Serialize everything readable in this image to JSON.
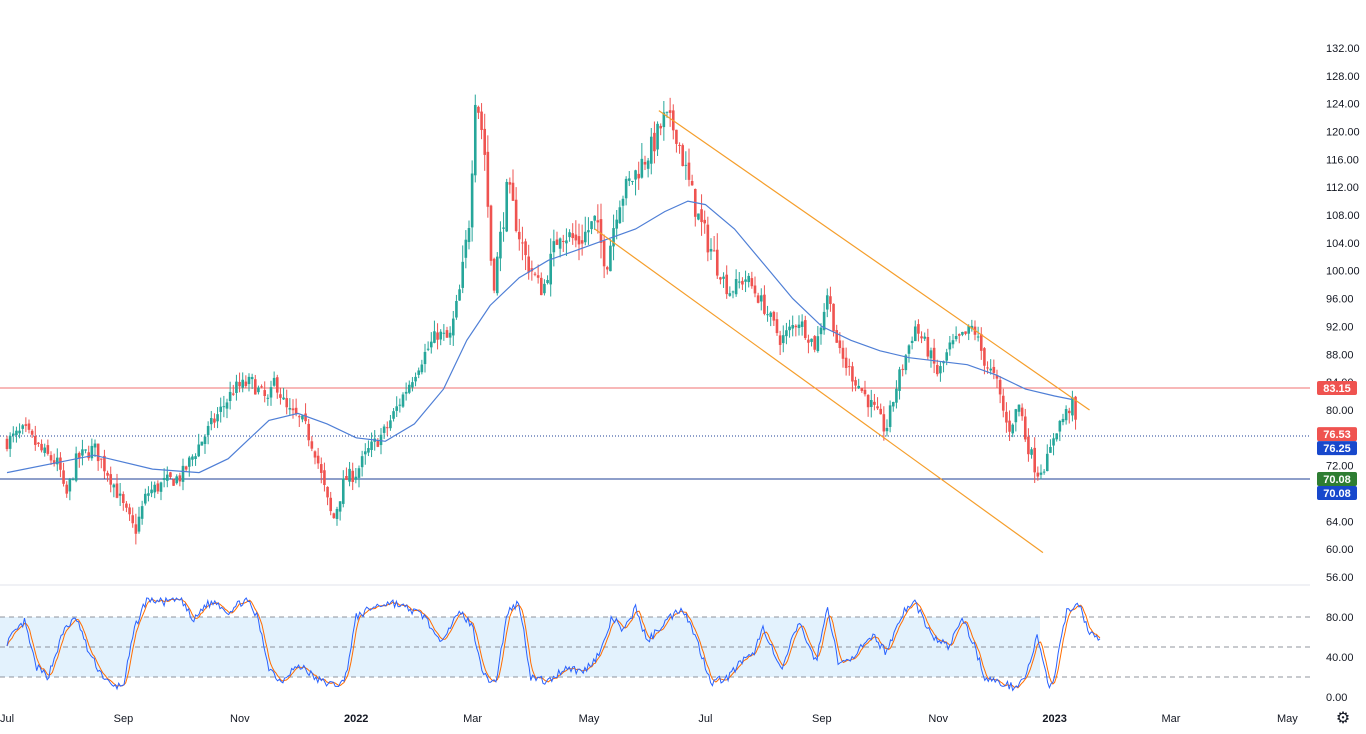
{
  "colors": {
    "up": "#26a69a",
    "down": "#ef5350",
    "ma": "#4f7fd6",
    "channel": "#f59e2b",
    "resistance_line": "#f07070",
    "support_line": "#1c3f94",
    "current_line": "#1c3f94",
    "stoch_k": "#2962ff",
    "stoch_d": "#ff6d00",
    "stoch_band": "#e3f2fd",
    "badge_red": "#ef5350",
    "badge_blue": "#1848cc",
    "badge_green": "#2e7d32"
  },
  "chart_data": {
    "type": "candlestick",
    "price_axis": {
      "ylim": [
        54,
        133
      ],
      "ticks": [
        "132.00",
        "128.00",
        "124.00",
        "120.00",
        "116.00",
        "112.00",
        "108.00",
        "104.00",
        "100.00",
        "96.00",
        "92.00",
        "88.00",
        "84.00",
        "80.00",
        "72.00",
        "64.00",
        "60.00",
        "56.00"
      ],
      "tick_values": [
        132,
        128,
        124,
        120,
        116,
        112,
        108,
        104,
        100,
        96,
        92,
        88,
        84,
        80,
        72,
        64,
        60,
        56
      ]
    },
    "time_axis": {
      "labels": [
        "Jul",
        "Sep",
        "Nov",
        "2022",
        "Mar",
        "May",
        "Jul",
        "Sep",
        "Nov",
        "2023",
        "Mar",
        "May"
      ],
      "bold": [
        false,
        false,
        false,
        true,
        false,
        false,
        false,
        false,
        false,
        true,
        false,
        false
      ],
      "months_offset": [
        0,
        2,
        4,
        6,
        8,
        10,
        12,
        14,
        16,
        18,
        20,
        22
      ]
    },
    "ohlc_anchors_close": [
      [
        0,
        75.5
      ],
      [
        0.3,
        77
      ],
      [
        0.6,
        74
      ],
      [
        0.9,
        72
      ],
      [
        1.0,
        67
      ],
      [
        1.2,
        73
      ],
      [
        1.5,
        74.5
      ],
      [
        1.8,
        70
      ],
      [
        2.0,
        66
      ],
      [
        2.2,
        62.5
      ],
      [
        2.4,
        68
      ],
      [
        2.7,
        69.5
      ],
      [
        3.0,
        70.5
      ],
      [
        3.3,
        75
      ],
      [
        3.6,
        79
      ],
      [
        3.9,
        83
      ],
      [
        4.2,
        84
      ],
      [
        4.5,
        81
      ],
      [
        4.6,
        84.5
      ],
      [
        4.8,
        80
      ],
      [
        5.1,
        78
      ],
      [
        5.3,
        74
      ],
      [
        5.5,
        67
      ],
      [
        5.6,
        64
      ],
      [
        5.8,
        70
      ],
      [
        6.0,
        71
      ],
      [
        6.2,
        74
      ],
      [
        6.5,
        77
      ],
      [
        6.8,
        82
      ],
      [
        7.1,
        87
      ],
      [
        7.4,
        91
      ],
      [
        7.6,
        90
      ],
      [
        7.8,
        98
      ],
      [
        7.95,
        108
      ],
      [
        8.05,
        126
      ],
      [
        8.2,
        118
      ],
      [
        8.35,
        97
      ],
      [
        8.6,
        112
      ],
      [
        8.9,
        102
      ],
      [
        9.2,
        97
      ],
      [
        9.5,
        106
      ],
      [
        9.8,
        104
      ],
      [
        10.1,
        107
      ],
      [
        10.3,
        101
      ],
      [
        10.5,
        110
      ],
      [
        10.8,
        114
      ],
      [
        11.1,
        118
      ],
      [
        11.3,
        122
      ],
      [
        11.5,
        120
      ],
      [
        11.7,
        113
      ],
      [
        11.9,
        107
      ],
      [
        12.1,
        103
      ],
      [
        12.4,
        97
      ],
      [
        12.7,
        99
      ],
      [
        13.0,
        95
      ],
      [
        13.3,
        90
      ],
      [
        13.6,
        93
      ],
      [
        13.9,
        89
      ],
      [
        14.1,
        97
      ],
      [
        14.3,
        88
      ],
      [
        14.6,
        84
      ],
      [
        14.9,
        80
      ],
      [
        15.1,
        77
      ],
      [
        15.3,
        84
      ],
      [
        15.6,
        92
      ],
      [
        15.8,
        89
      ],
      [
        16.0,
        85
      ],
      [
        16.2,
        89
      ],
      [
        16.5,
        91
      ],
      [
        16.6,
        92
      ],
      [
        16.8,
        87
      ],
      [
        17.0,
        84
      ],
      [
        17.2,
        77
      ],
      [
        17.4,
        81
      ],
      [
        17.5,
        76
      ],
      [
        17.7,
        71
      ],
      [
        17.9,
        73
      ],
      [
        18.0,
        77
      ],
      [
        18.2,
        79.5
      ],
      [
        18.3,
        81
      ],
      [
        18.4,
        76.5
      ]
    ],
    "moving_average": {
      "name": "",
      "points": [
        [
          0,
          71
        ],
        [
          1.5,
          73.5
        ],
        [
          2.5,
          71.5
        ],
        [
          3.3,
          71
        ],
        [
          3.8,
          73
        ],
        [
          4.5,
          78.5
        ],
        [
          5.0,
          79.5
        ],
        [
          5.5,
          78
        ],
        [
          6.0,
          76
        ],
        [
          6.5,
          75.5
        ],
        [
          7.0,
          78
        ],
        [
          7.5,
          83
        ],
        [
          7.9,
          90
        ],
        [
          8.3,
          95
        ],
        [
          8.8,
          99
        ],
        [
          9.3,
          101.5
        ],
        [
          9.8,
          103
        ],
        [
          10.3,
          104.5
        ],
        [
          10.8,
          106
        ],
        [
          11.3,
          108.5
        ],
        [
          11.7,
          110
        ],
        [
          12.0,
          109.5
        ],
        [
          12.5,
          106
        ],
        [
          13.0,
          101
        ],
        [
          13.5,
          96
        ],
        [
          14.0,
          92
        ],
        [
          14.5,
          90
        ],
        [
          15.0,
          88.5
        ],
        [
          15.5,
          87.5
        ],
        [
          16.0,
          87
        ],
        [
          16.5,
          86.5
        ],
        [
          17.0,
          85
        ],
        [
          17.5,
          83
        ],
        [
          18.0,
          82
        ],
        [
          18.3,
          81.5
        ]
      ]
    },
    "channel": {
      "upper": [
        [
          11.2,
          123
        ],
        [
          18.6,
          80
        ]
      ],
      "lower": [
        [
          10.1,
          106
        ],
        [
          17.8,
          59.5
        ]
      ]
    },
    "horizontal_lines": {
      "resistance": 83.15,
      "current": 76.25,
      "support": 70.08
    },
    "price_badges": [
      {
        "label": "83.15",
        "value": 83.15,
        "color": "badge_red"
      },
      {
        "label": "76.53",
        "value": 76.53,
        "color": "badge_red"
      },
      {
        "label": "76.25",
        "value": 76.25,
        "color": "badge_blue"
      },
      {
        "label": "70.08",
        "value": 70.08,
        "color": "badge_green"
      },
      {
        "label": "70.08",
        "value": 70.08,
        "color": "badge_blue"
      }
    ],
    "stochastic": {
      "ylim": [
        0,
        105
      ],
      "ticks": [
        "80.00",
        "40.00",
        "0.00"
      ],
      "tick_values": [
        80,
        40,
        0
      ],
      "band": [
        20,
        80
      ],
      "midline": 50,
      "k_anchors": [
        [
          0,
          55
        ],
        [
          0.3,
          75
        ],
        [
          0.5,
          30
        ],
        [
          0.7,
          20
        ],
        [
          1.0,
          70
        ],
        [
          1.2,
          78
        ],
        [
          1.4,
          45
        ],
        [
          1.6,
          25
        ],
        [
          1.8,
          10
        ],
        [
          2.0,
          12
        ],
        [
          2.2,
          70
        ],
        [
          2.4,
          98
        ],
        [
          2.7,
          95
        ],
        [
          3.0,
          98
        ],
        [
          3.2,
          75
        ],
        [
          3.4,
          92
        ],
        [
          3.6,
          95
        ],
        [
          3.8,
          85
        ],
        [
          4.1,
          98
        ],
        [
          4.3,
          80
        ],
        [
          4.5,
          30
        ],
        [
          4.7,
          15
        ],
        [
          4.9,
          28
        ],
        [
          5.1,
          30
        ],
        [
          5.3,
          18
        ],
        [
          5.6,
          12
        ],
        [
          5.8,
          15
        ],
        [
          6.0,
          80
        ],
        [
          6.3,
          90
        ],
        [
          6.6,
          95
        ],
        [
          6.9,
          88
        ],
        [
          7.2,
          80
        ],
        [
          7.4,
          55
        ],
        [
          7.6,
          70
        ],
        [
          7.8,
          85
        ],
        [
          8.0,
          70
        ],
        [
          8.2,
          20
        ],
        [
          8.4,
          15
        ],
        [
          8.6,
          85
        ],
        [
          8.8,
          95
        ],
        [
          9.0,
          20
        ],
        [
          9.3,
          15
        ],
        [
          9.6,
          30
        ],
        [
          9.9,
          25
        ],
        [
          10.2,
          45
        ],
        [
          10.4,
          80
        ],
        [
          10.6,
          65
        ],
        [
          10.8,
          90
        ],
        [
          11.0,
          55
        ],
        [
          11.3,
          75
        ],
        [
          11.6,
          90
        ],
        [
          11.8,
          65
        ],
        [
          12.1,
          15
        ],
        [
          12.4,
          20
        ],
        [
          12.6,
          35
        ],
        [
          12.8,
          40
        ],
        [
          13.0,
          70
        ],
        [
          13.3,
          25
        ],
        [
          13.6,
          75
        ],
        [
          13.9,
          35
        ],
        [
          14.1,
          90
        ],
        [
          14.3,
          30
        ],
        [
          14.6,
          45
        ],
        [
          14.9,
          60
        ],
        [
          15.1,
          45
        ],
        [
          15.4,
          85
        ],
        [
          15.6,
          95
        ],
        [
          15.9,
          60
        ],
        [
          16.2,
          50
        ],
        [
          16.4,
          80
        ],
        [
          16.6,
          55
        ],
        [
          16.8,
          20
        ],
        [
          17.0,
          15
        ],
        [
          17.3,
          10
        ],
        [
          17.5,
          20
        ],
        [
          17.7,
          60
        ],
        [
          17.9,
          10
        ],
        [
          18.0,
          20
        ],
        [
          18.2,
          85
        ],
        [
          18.4,
          95
        ],
        [
          18.6,
          65
        ],
        [
          18.8,
          55
        ]
      ]
    }
  },
  "settings": {
    "gear_icon": "⚙"
  }
}
